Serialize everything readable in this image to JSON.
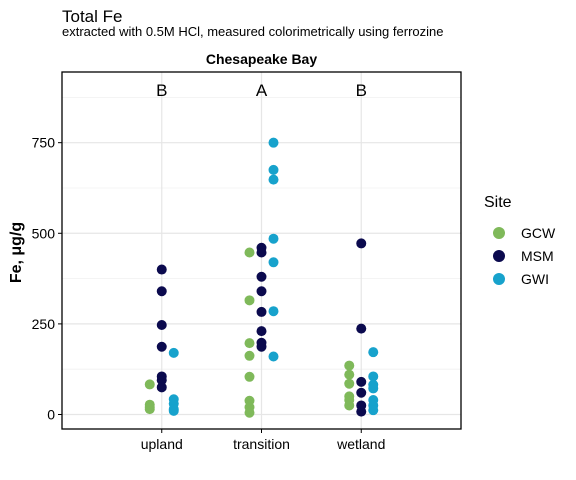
{
  "chart_data": {
    "type": "scatter",
    "title": "Total Fe",
    "subtitle": "extracted with 0.5M HCl, measured colorimetrically using ferrozine",
    "facet_label": "Chesapeake Bay",
    "xlabel": "",
    "ylabel": "Fe, μg/g",
    "categories": [
      "upland",
      "transition",
      "wetland"
    ],
    "letters": [
      "B",
      "A",
      "B"
    ],
    "ylim": [
      -40,
      945
    ],
    "yticks": [
      0,
      250,
      500,
      750
    ],
    "grid": true,
    "legend": {
      "title": "Site",
      "position": "right"
    },
    "series": [
      {
        "name": "GCW",
        "color": "#7fb95a",
        "points": {
          "upland": [
            83,
            27,
            20,
            15
          ],
          "transition": [
            447,
            315,
            197,
            162,
            104,
            38,
            20,
            5
          ],
          "wetland": [
            135,
            110,
            85,
            50,
            40,
            25
          ]
        }
      },
      {
        "name": "MSM",
        "color": "#0b0a4e",
        "points": {
          "upland": [
            400,
            340,
            247,
            187,
            105,
            95,
            75
          ],
          "transition": [
            460,
            447,
            380,
            340,
            283,
            230,
            198,
            187
          ],
          "wetland": [
            472,
            237,
            90,
            60,
            25,
            8
          ]
        }
      },
      {
        "name": "GWI",
        "color": "#17a2cc",
        "points": {
          "upland": [
            170,
            42,
            30,
            15,
            10
          ],
          "transition": [
            750,
            675,
            648,
            485,
            420,
            285,
            160
          ],
          "wetland": [
            172,
            105,
            82,
            72,
            40,
            25,
            12
          ]
        }
      }
    ]
  }
}
